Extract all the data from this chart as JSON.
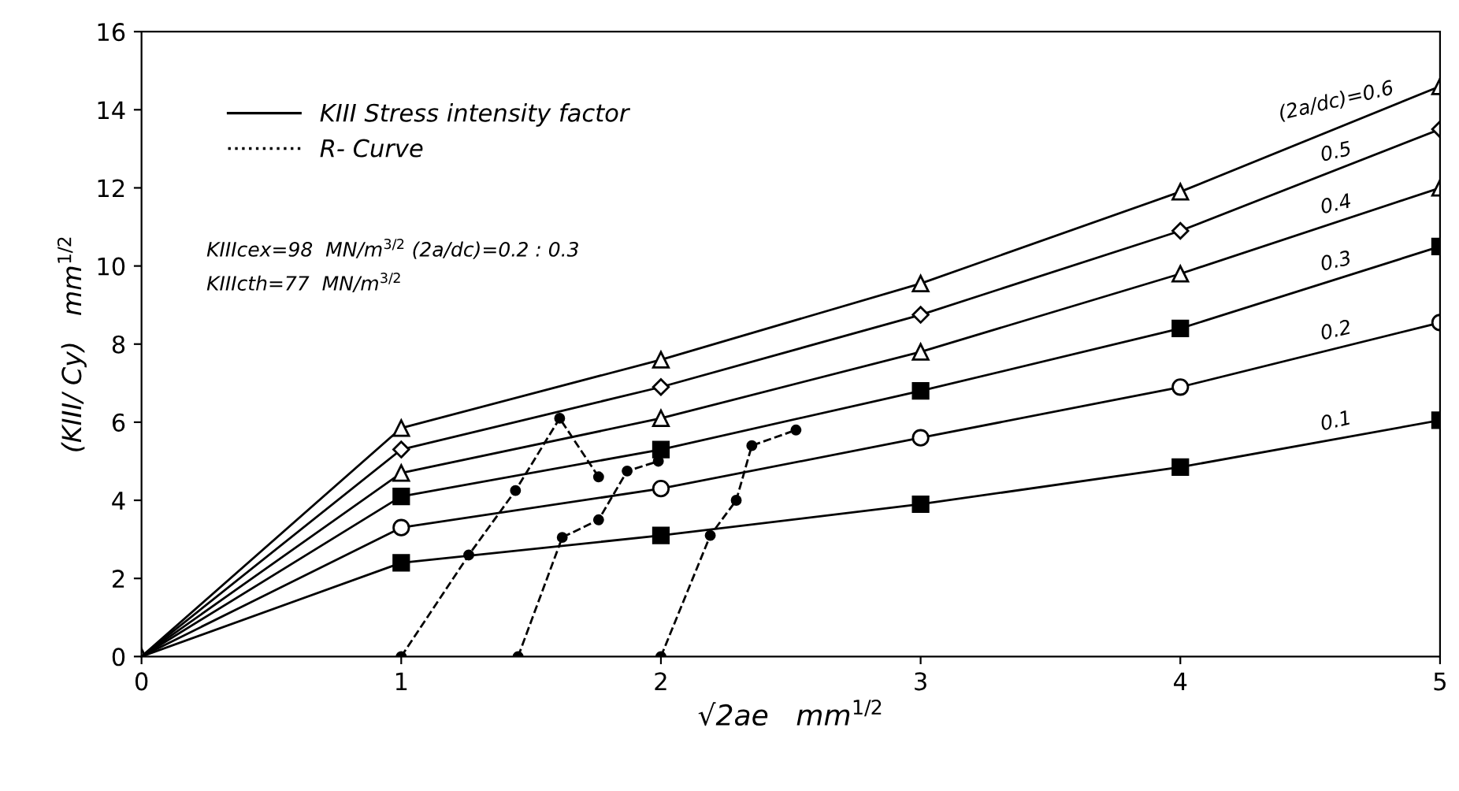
{
  "chart_data": {
    "type": "line",
    "xlabel": "√2ae   mm$^{1/2}$",
    "ylabel": "(KIII/ Cy)   mm$^{1/2}$",
    "xlim": [
      0,
      5
    ],
    "xticks": [
      0,
      1,
      2,
      3,
      4,
      5
    ],
    "ylim": [
      0,
      16
    ],
    "yticks": [
      0,
      2,
      4,
      6,
      8,
      10,
      12,
      14,
      16
    ],
    "grid": false,
    "legend": "top left",
    "annotations": [
      "KIII Stress intensity factor",
      "KIIIcex=98  MN/m$^{3/2}$ (2a/dc)=0.2 : 0.3",
      "KIIIcth=77  MN/m$^{3/2}$"
    ],
    "series": [
      {
        "name": "(2a/dc)=0.6",
        "color": "#000000",
        "marker": "triangle",
        "line_style": "solid",
        "x": [
          0,
          1,
          2,
          3,
          4,
          5
        ],
        "values": [
          0,
          5.85,
          7.6,
          9.55,
          11.9,
          14.6
        ]
      },
      {
        "name": "0.5",
        "color": "#000000",
        "marker": "diamond",
        "line_style": "solid",
        "x": [
          0,
          1,
          2,
          3,
          4,
          5
        ],
        "values": [
          0,
          5.3,
          6.9,
          8.75,
          10.9,
          13.5
        ]
      },
      {
        "name": "0.4",
        "color": "#000000",
        "marker": "triangle",
        "line_style": "solid",
        "x": [
          0,
          1,
          2,
          3,
          4,
          5
        ],
        "values": [
          0,
          4.7,
          6.1,
          7.8,
          9.8,
          12.0
        ]
      },
      {
        "name": "0.3",
        "color": "#000000",
        "marker": "square",
        "line_style": "solid",
        "x": [
          0,
          1,
          2,
          3,
          4,
          5
        ],
        "values": [
          0,
          4.1,
          5.3,
          6.8,
          8.4,
          10.5
        ]
      },
      {
        "name": "0.2",
        "color": "#000000",
        "marker": "circle",
        "line_style": "solid",
        "x": [
          0,
          1,
          2,
          3,
          4,
          5
        ],
        "values": [
          0,
          3.3,
          4.3,
          5.6,
          6.9,
          8.55
        ]
      },
      {
        "name": "0.1",
        "color": "#000000",
        "marker": "square",
        "line_style": "solid",
        "x": [
          0,
          1,
          2,
          3,
          4,
          5
        ],
        "values": [
          0,
          2.4,
          3.1,
          3.9,
          4.85,
          6.05
        ]
      },
      {
        "name": "R- Curve",
        "color": "#000000",
        "marker": "circle",
        "line_style": "dashed",
        "x": [
          1,
          1.26,
          1.44,
          1.61,
          1.76
        ],
        "values": [
          0,
          2.6,
          4.25,
          6.1,
          4.6
        ]
      },
      {
        "color": "#000000",
        "marker": "circle",
        "line_style": "dashed",
        "x": [
          1.45,
          1.62,
          1.76,
          1.87,
          1.99
        ],
        "values": [
          0,
          3.05,
          3.5,
          4.75,
          5.0
        ]
      },
      {
        "color": "#000000",
        "marker": "circle",
        "line_style": "dashed",
        "x": [
          2,
          2.19,
          2.29,
          2.35,
          2.52
        ],
        "values": [
          0,
          3.1,
          4.0,
          5.4,
          5.8
        ]
      }
    ]
  }
}
